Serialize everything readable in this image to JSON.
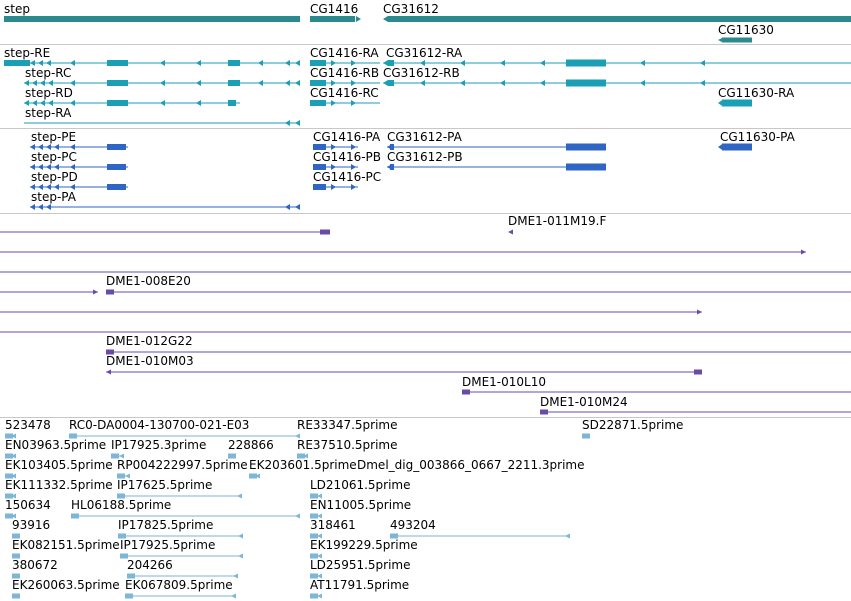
{
  "colors": {
    "gene": "#2a8a8e",
    "rna": "#1a9fb5",
    "protein": "#2f66c6",
    "clone": "#6a4ca8",
    "est": "#7db6d6",
    "separator": "#c8c8c8"
  },
  "genes": {
    "step": "step",
    "cg1416": "CG1416",
    "cg31612": "CG31612",
    "cg11630": "CG11630"
  },
  "transcripts": {
    "step_re": "step-RE",
    "step_rc": "step-RC",
    "step_rd": "step-RD",
    "step_ra": "step-RA",
    "cg1416_ra": "CG1416-RA",
    "cg1416_rb": "CG1416-RB",
    "cg1416_rc": "CG1416-RC",
    "cg31612_ra": "CG31612-RA",
    "cg31612_rb": "CG31612-RB",
    "cg11630_ra": "CG11630-RA"
  },
  "proteins": {
    "step_pe": "step-PE",
    "step_pc": "step-PC",
    "step_pd": "step-PD",
    "step_pa": "step-PA",
    "cg1416_pa": "CG1416-PA",
    "cg1416_pb": "CG1416-PB",
    "cg1416_pc": "CG1416-PC",
    "cg31612_pa": "CG31612-PA",
    "cg31612_pb": "CG31612-PB",
    "cg11630_pa": "CG11630-PA"
  },
  "clones": {
    "dme1_011m19f": "DME1-011M19.F",
    "dme1_008e20": "DME1-008E20",
    "dme1_012g22": "DME1-012G22",
    "dme1_010m03": "DME1-010M03",
    "dme1_010l10": "DME1-010L10",
    "dme1_010m24": "DME1-010M24"
  },
  "ests": {
    "e523478": "523478",
    "rc0": "RC0-DA0004-130700-021-E03",
    "re33347": "RE33347.5prime",
    "sd22871": "SD22871.5prime",
    "en03963": "EN03963.5prime",
    "ip17925_3": "IP17925.3prime",
    "e228866": "228866",
    "re37510": "RE37510.5prime",
    "ek103405": "EK103405.5prime",
    "rp004222997": "RP004222997.5prime",
    "ek203601": "EK203601.5prime",
    "dmel_dig": "Dmel_dig_003866_0667_2211.3prime",
    "ek111332": "EK111332.5prime",
    "ip17625": "IP17625.5prime",
    "ld21061": "LD21061.5prime",
    "e150634": "150634",
    "hl06188": "HL06188.5prime",
    "en11005": "EN11005.5prime",
    "e93916": "93916",
    "ip17825": "IP17825.5prime",
    "e318461": "318461",
    "e493204": "493204",
    "ek082151": "EK082151.5prime",
    "ip17925_5": "IP17925.5prime",
    "ek199229": "EK199229.5prime",
    "e380672": "380672",
    "e204266": "204266",
    "ld25951": "LD25951.5prime",
    "ek260063": "EK260063.5prime",
    "ek067809": "EK067809.5prime",
    "at11791": "AT11791.5prime"
  }
}
